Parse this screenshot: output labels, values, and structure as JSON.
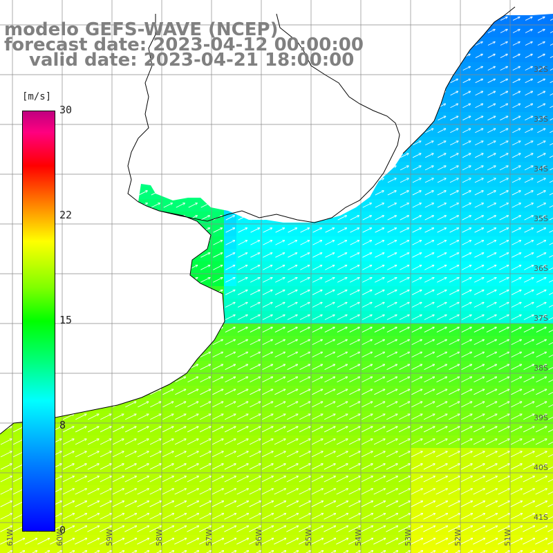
{
  "title": {
    "line1": "modelo GEFS-WAVE (NCEP)",
    "line2": "forecast date: 2023-04-12 00:00:00",
    "line3": "valid date: 2023-04-21 18:00:00"
  },
  "colorbar": {
    "unit": "[m/s]",
    "ticks": [
      "30",
      "22",
      "15",
      "8",
      "0"
    ],
    "colors": [
      "#0000ff",
      "#0080ff",
      "#00ffff",
      "#00ff80",
      "#00ff00",
      "#80ff00",
      "#ffff00",
      "#ff8000",
      "#ff0000",
      "#c00080"
    ]
  },
  "map": {
    "lat_labels": [
      "32S",
      "33S",
      "34S",
      "35S",
      "36S",
      "37S",
      "38S",
      "39S",
      "40S",
      "41S"
    ],
    "lon_labels": [
      "61W",
      "60W",
      "59W",
      "58W",
      "57W",
      "56W",
      "55W",
      "54W",
      "53W",
      "52W",
      "51W"
    ],
    "land_color": "#ffffff",
    "arrow_color": "#ffffff",
    "grid_color": "#888888",
    "wind_direction": "toward north-east"
  }
}
